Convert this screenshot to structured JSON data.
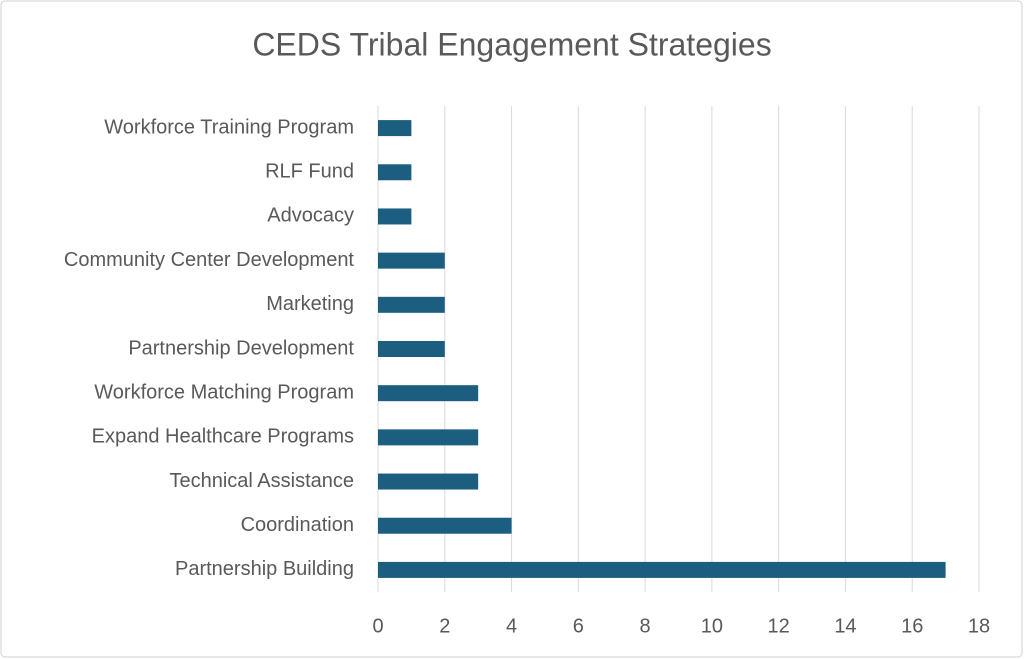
{
  "chart_data": {
    "type": "bar",
    "orientation": "horizontal",
    "title": "CEDS Tribal Engagement Strategies",
    "categories": [
      "Workforce Training Program",
      "RLF Fund",
      "Advocacy",
      "Community Center Development",
      "Marketing",
      "Partnership Development",
      "Workforce Matching Program",
      "Expand Healthcare Programs",
      "Technical Assistance",
      "Coordination",
      "Partnership Building"
    ],
    "values": [
      1,
      1,
      1,
      2,
      2,
      2,
      3,
      3,
      3,
      4,
      17
    ],
    "color": "#1b5e80",
    "xlim": [
      0,
      18
    ],
    "xticks": [
      0,
      2,
      4,
      6,
      8,
      10,
      12,
      14,
      16,
      18
    ],
    "grid": true
  }
}
